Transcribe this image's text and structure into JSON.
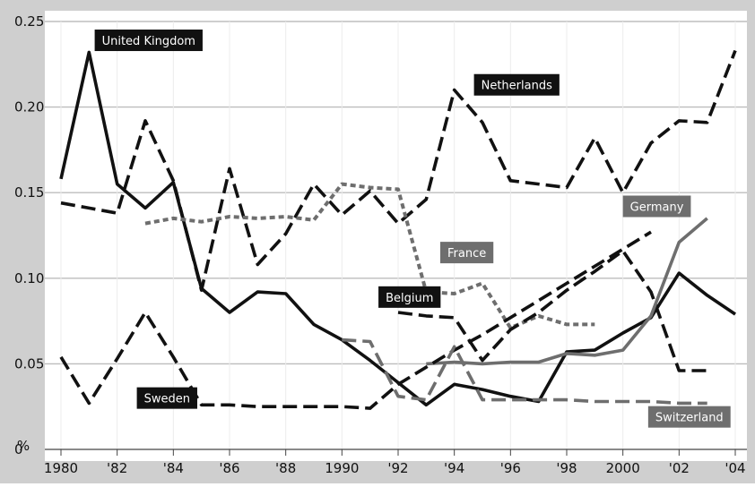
{
  "chart_data": {
    "type": "line",
    "title": "",
    "xlabel": "",
    "ylabel": "%",
    "xlim": [
      1980,
      2004
    ],
    "ylim": [
      0,
      0.25
    ],
    "grid": true,
    "colors": {
      "background": "#cfcfcf",
      "plot": "#ffffff",
      "black": "#111111",
      "gray": "#6e6e6e",
      "label_black": "#111111",
      "label_gray": "#6e6e6e"
    },
    "y_ticks": [
      {
        "value": 0,
        "label": "0"
      },
      {
        "value": 0.05,
        "label": "0.05"
      },
      {
        "value": 0.1,
        "label": "0.10"
      },
      {
        "value": 0.15,
        "label": "0.15"
      },
      {
        "value": 0.2,
        "label": "0.20"
      },
      {
        "value": 0.25,
        "label": "0.25"
      }
    ],
    "x_ticks": [
      {
        "value": 1980,
        "label": "1980"
      },
      {
        "value": 1982,
        "label": "'82"
      },
      {
        "value": 1984,
        "label": "'84"
      },
      {
        "value": 1986,
        "label": "'86"
      },
      {
        "value": 1988,
        "label": "'88"
      },
      {
        "value": 1990,
        "label": "1990"
      },
      {
        "value": 1992,
        "label": "'92"
      },
      {
        "value": 1994,
        "label": "'94"
      },
      {
        "value": 1996,
        "label": "'96"
      },
      {
        "value": 1998,
        "label": "'98"
      },
      {
        "value": 2000,
        "label": "2000"
      },
      {
        "value": 2002,
        "label": "'02"
      },
      {
        "value": 2004,
        "label": "'04"
      }
    ],
    "series": [
      {
        "name": "United Kingdom",
        "color": "black",
        "style": "solid",
        "x": [
          1980,
          1981,
          1982,
          1983,
          1984,
          1985,
          1986,
          1987,
          1988,
          1989,
          1990,
          1991,
          1992,
          1993,
          1994,
          1995,
          1996,
          1997,
          1998,
          1999,
          2000,
          2001,
          2002,
          2003,
          2004
        ],
        "y": [
          0.158,
          0.232,
          0.155,
          0.141,
          0.156,
          0.094,
          0.08,
          0.092,
          0.091,
          0.073,
          0.064,
          0.052,
          0.039,
          0.026,
          0.038,
          0.035,
          0.031,
          0.028,
          0.057,
          0.058,
          0.068,
          0.077,
          0.103,
          0.09,
          0.079
        ]
      },
      {
        "name": "Netherlands",
        "color": "black",
        "style": "dashed",
        "x": [
          1980,
          1981,
          1982,
          1983,
          1984,
          1985,
          1986,
          1987,
          1988,
          1989,
          1990,
          1991,
          1992,
          1993,
          1994,
          1995,
          1996,
          1997,
          1998,
          1999,
          2000,
          2001,
          2002,
          2003,
          2004
        ],
        "y": [
          0.144,
          0.141,
          0.138,
          0.192,
          0.157,
          0.093,
          0.164,
          0.108,
          0.126,
          0.155,
          0.137,
          0.151,
          0.132,
          0.146,
          0.21,
          0.191,
          0.157,
          0.155,
          0.153,
          0.182,
          0.15,
          0.179,
          0.192,
          0.191,
          0.233
        ]
      },
      {
        "name": "France",
        "color": "gray",
        "style": "dotted",
        "x": [
          1983,
          1984,
          1985,
          1986,
          1987,
          1988,
          1989,
          1990,
          1991,
          1992,
          1993,
          1994,
          1995,
          1996,
          1997,
          1998,
          1999
        ],
        "y": [
          0.132,
          0.135,
          0.133,
          0.136,
          0.135,
          0.136,
          0.134,
          0.155,
          0.153,
          0.152,
          0.092,
          0.091,
          0.097,
          0.071,
          0.078,
          0.073,
          0.073
        ]
      },
      {
        "name": "Belgium",
        "color": "black",
        "style": "dashed",
        "x": [
          1992,
          1993,
          1994,
          1995,
          1996,
          1997,
          1998,
          1999,
          2000,
          2001,
          2002,
          2003
        ],
        "y": [
          0.08,
          0.078,
          0.077,
          0.052,
          0.07,
          0.08,
          0.093,
          0.104,
          0.116,
          0.092,
          0.046,
          0.046
        ]
      },
      {
        "name": "Germany",
        "color": "gray",
        "style": "solid",
        "x": [
          1993,
          1994,
          1995,
          1996,
          1997,
          1998,
          1999,
          2000,
          2001,
          2002,
          2003
        ],
        "y": [
          0.05,
          0.051,
          0.05,
          0.051,
          0.051,
          0.056,
          0.055,
          0.058,
          0.078,
          0.121,
          0.135
        ]
      },
      {
        "name": "Sweden",
        "color": "black",
        "style": "dashed",
        "x": [
          1980,
          1981,
          1982,
          1983,
          1984,
          1985,
          1986,
          1987,
          1988,
          1989,
          1990,
          1991,
          1992,
          1993,
          1994,
          1995,
          1996,
          1997,
          1998,
          1999,
          2000,
          2001
        ],
        "y": [
          0.054,
          0.027,
          0.053,
          0.08,
          0.054,
          0.026,
          0.026,
          0.025,
          0.025,
          0.025,
          0.025,
          0.024,
          0.038,
          0.048,
          0.058,
          0.067,
          0.077,
          0.087,
          0.097,
          0.107,
          0.117,
          0.127
        ]
      },
      {
        "name": "Switzerland",
        "color": "gray",
        "style": "dashed",
        "x": [
          1990,
          1991,
          1992,
          1993,
          1994,
          1995,
          1996,
          1997,
          1998,
          1999,
          2000,
          2001,
          2002,
          2003
        ],
        "y": [
          0.064,
          0.063,
          0.031,
          0.029,
          0.06,
          0.029,
          0.029,
          0.029,
          0.029,
          0.028,
          0.028,
          0.028,
          0.027,
          0.027
        ]
      }
    ],
    "labels": [
      {
        "text": "United Kingdom",
        "series": "United Kingdom",
        "style": "black",
        "x": 1981.2,
        "y": 0.239
      },
      {
        "text": "Netherlands",
        "series": "Netherlands",
        "style": "black",
        "x": 1994.7,
        "y": 0.213
      },
      {
        "text": "Germany",
        "series": "Germany",
        "style": "gray",
        "x": 2000.0,
        "y": 0.142
      },
      {
        "text": "France",
        "series": "France",
        "style": "gray",
        "x": 1993.5,
        "y": 0.115
      },
      {
        "text": "Belgium",
        "series": "Belgium",
        "style": "black",
        "x": 1991.3,
        "y": 0.089
      },
      {
        "text": "Sweden",
        "series": "Sweden",
        "style": "black",
        "x": 1982.7,
        "y": 0.03
      },
      {
        "text": "Switzerland",
        "series": "Switzerland",
        "style": "gray",
        "x": 2000.9,
        "y": 0.019
      }
    ]
  }
}
